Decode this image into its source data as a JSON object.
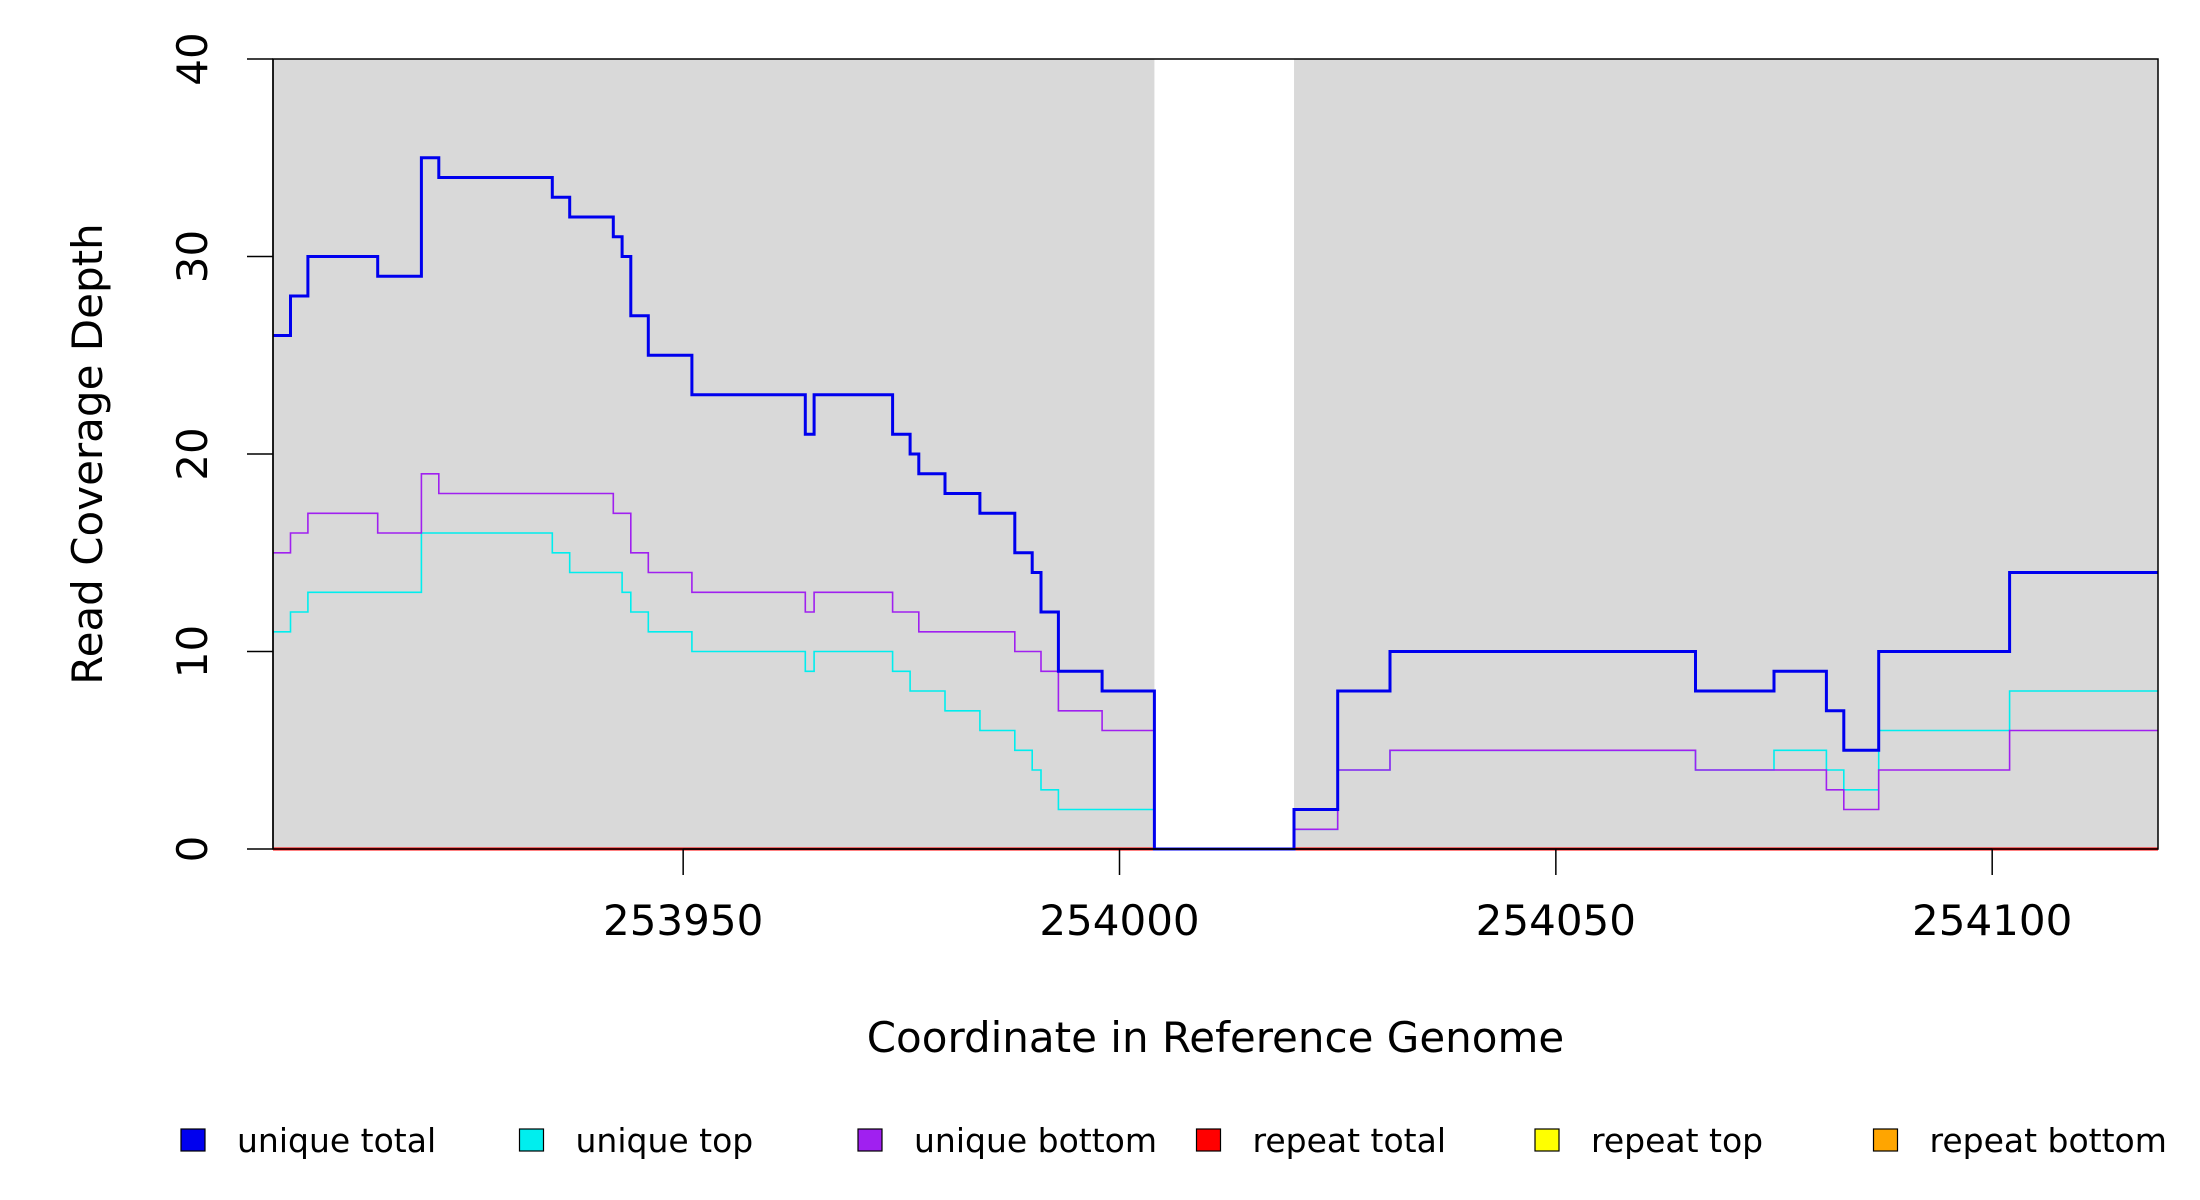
{
  "chart_data": {
    "type": "line",
    "title": "",
    "xlabel": "Coordinate in Reference Genome",
    "ylabel": "Read Coverage Depth",
    "xlim": [
      253903,
      254119
    ],
    "ylim": [
      0,
      40
    ],
    "xticks": [
      253950,
      254000,
      254050,
      254100
    ],
    "yticks": [
      0,
      10,
      20,
      30,
      40
    ],
    "background": "#d9d9d9",
    "gap_region": [
      254004,
      254020
    ],
    "gap_color": "#ffffff",
    "legend_position": "bottom",
    "series": [
      {
        "name": "unique total",
        "color": "#0000ee",
        "width": 3,
        "points": [
          [
            253903,
            26
          ],
          [
            253905,
            28
          ],
          [
            253907,
            30
          ],
          [
            253915,
            29
          ],
          [
            253920,
            35
          ],
          [
            253922,
            34
          ],
          [
            253935,
            33
          ],
          [
            253937,
            32
          ],
          [
            253942,
            31
          ],
          [
            253943,
            30
          ],
          [
            253944,
            27
          ],
          [
            253946,
            25
          ],
          [
            253951,
            23
          ],
          [
            253964,
            21
          ],
          [
            253965,
            23
          ],
          [
            253974,
            21
          ],
          [
            253976,
            20
          ],
          [
            253977,
            19
          ],
          [
            253980,
            18
          ],
          [
            253984,
            17
          ],
          [
            253988,
            15
          ],
          [
            253990,
            14
          ],
          [
            253991,
            12
          ],
          [
            253993,
            9
          ],
          [
            253998,
            8
          ],
          [
            254004,
            0
          ],
          [
            254020,
            2
          ],
          [
            254025,
            8
          ],
          [
            254031,
            10
          ],
          [
            254066,
            8
          ],
          [
            254075,
            9
          ],
          [
            254081,
            7
          ],
          [
            254083,
            5
          ],
          [
            254087,
            10
          ],
          [
            254102,
            14
          ],
          [
            254119,
            14
          ]
        ]
      },
      {
        "name": "unique top",
        "color": "#00eeee",
        "width": 1.6,
        "points": [
          [
            253903,
            11
          ],
          [
            253905,
            12
          ],
          [
            253907,
            13
          ],
          [
            253920,
            16
          ],
          [
            253935,
            15
          ],
          [
            253937,
            14
          ],
          [
            253943,
            13
          ],
          [
            253944,
            12
          ],
          [
            253946,
            11
          ],
          [
            253951,
            10
          ],
          [
            253964,
            9
          ],
          [
            253965,
            10
          ],
          [
            253974,
            9
          ],
          [
            253976,
            8
          ],
          [
            253980,
            7
          ],
          [
            253984,
            6
          ],
          [
            253988,
            5
          ],
          [
            253990,
            4
          ],
          [
            253991,
            3
          ],
          [
            253993,
            2
          ],
          [
            254004,
            0
          ],
          [
            254020,
            1
          ],
          [
            254025,
            4
          ],
          [
            254031,
            5
          ],
          [
            254066,
            4
          ],
          [
            254075,
            5
          ],
          [
            254081,
            4
          ],
          [
            254083,
            3
          ],
          [
            254087,
            6
          ],
          [
            254102,
            8
          ],
          [
            254119,
            8
          ]
        ]
      },
      {
        "name": "unique bottom",
        "color": "#a020f0",
        "width": 1.6,
        "points": [
          [
            253903,
            15
          ],
          [
            253905,
            16
          ],
          [
            253907,
            17
          ],
          [
            253915,
            16
          ],
          [
            253920,
            19
          ],
          [
            253922,
            18
          ],
          [
            253942,
            17
          ],
          [
            253944,
            15
          ],
          [
            253946,
            14
          ],
          [
            253951,
            13
          ],
          [
            253964,
            12
          ],
          [
            253965,
            13
          ],
          [
            253974,
            12
          ],
          [
            253977,
            11
          ],
          [
            253988,
            10
          ],
          [
            253991,
            9
          ],
          [
            253993,
            7
          ],
          [
            253998,
            6
          ],
          [
            254004,
            0
          ],
          [
            254020,
            1
          ],
          [
            254025,
            4
          ],
          [
            254031,
            5
          ],
          [
            254066,
            4
          ],
          [
            254081,
            3
          ],
          [
            254083,
            2
          ],
          [
            254087,
            4
          ],
          [
            254102,
            6
          ],
          [
            254119,
            6
          ]
        ]
      },
      {
        "name": "repeat total",
        "color": "#ff0000",
        "width": 3,
        "points": [
          [
            253903,
            0
          ],
          [
            254119,
            0
          ]
        ]
      },
      {
        "name": "repeat top",
        "color": "#ffff00",
        "width": 3,
        "points": [
          [
            253903,
            0
          ],
          [
            254119,
            0
          ]
        ]
      },
      {
        "name": "repeat bottom",
        "color": "#ffa500",
        "width": 3,
        "points": [
          [
            253903,
            0
          ],
          [
            254119,
            0
          ]
        ]
      }
    ]
  }
}
